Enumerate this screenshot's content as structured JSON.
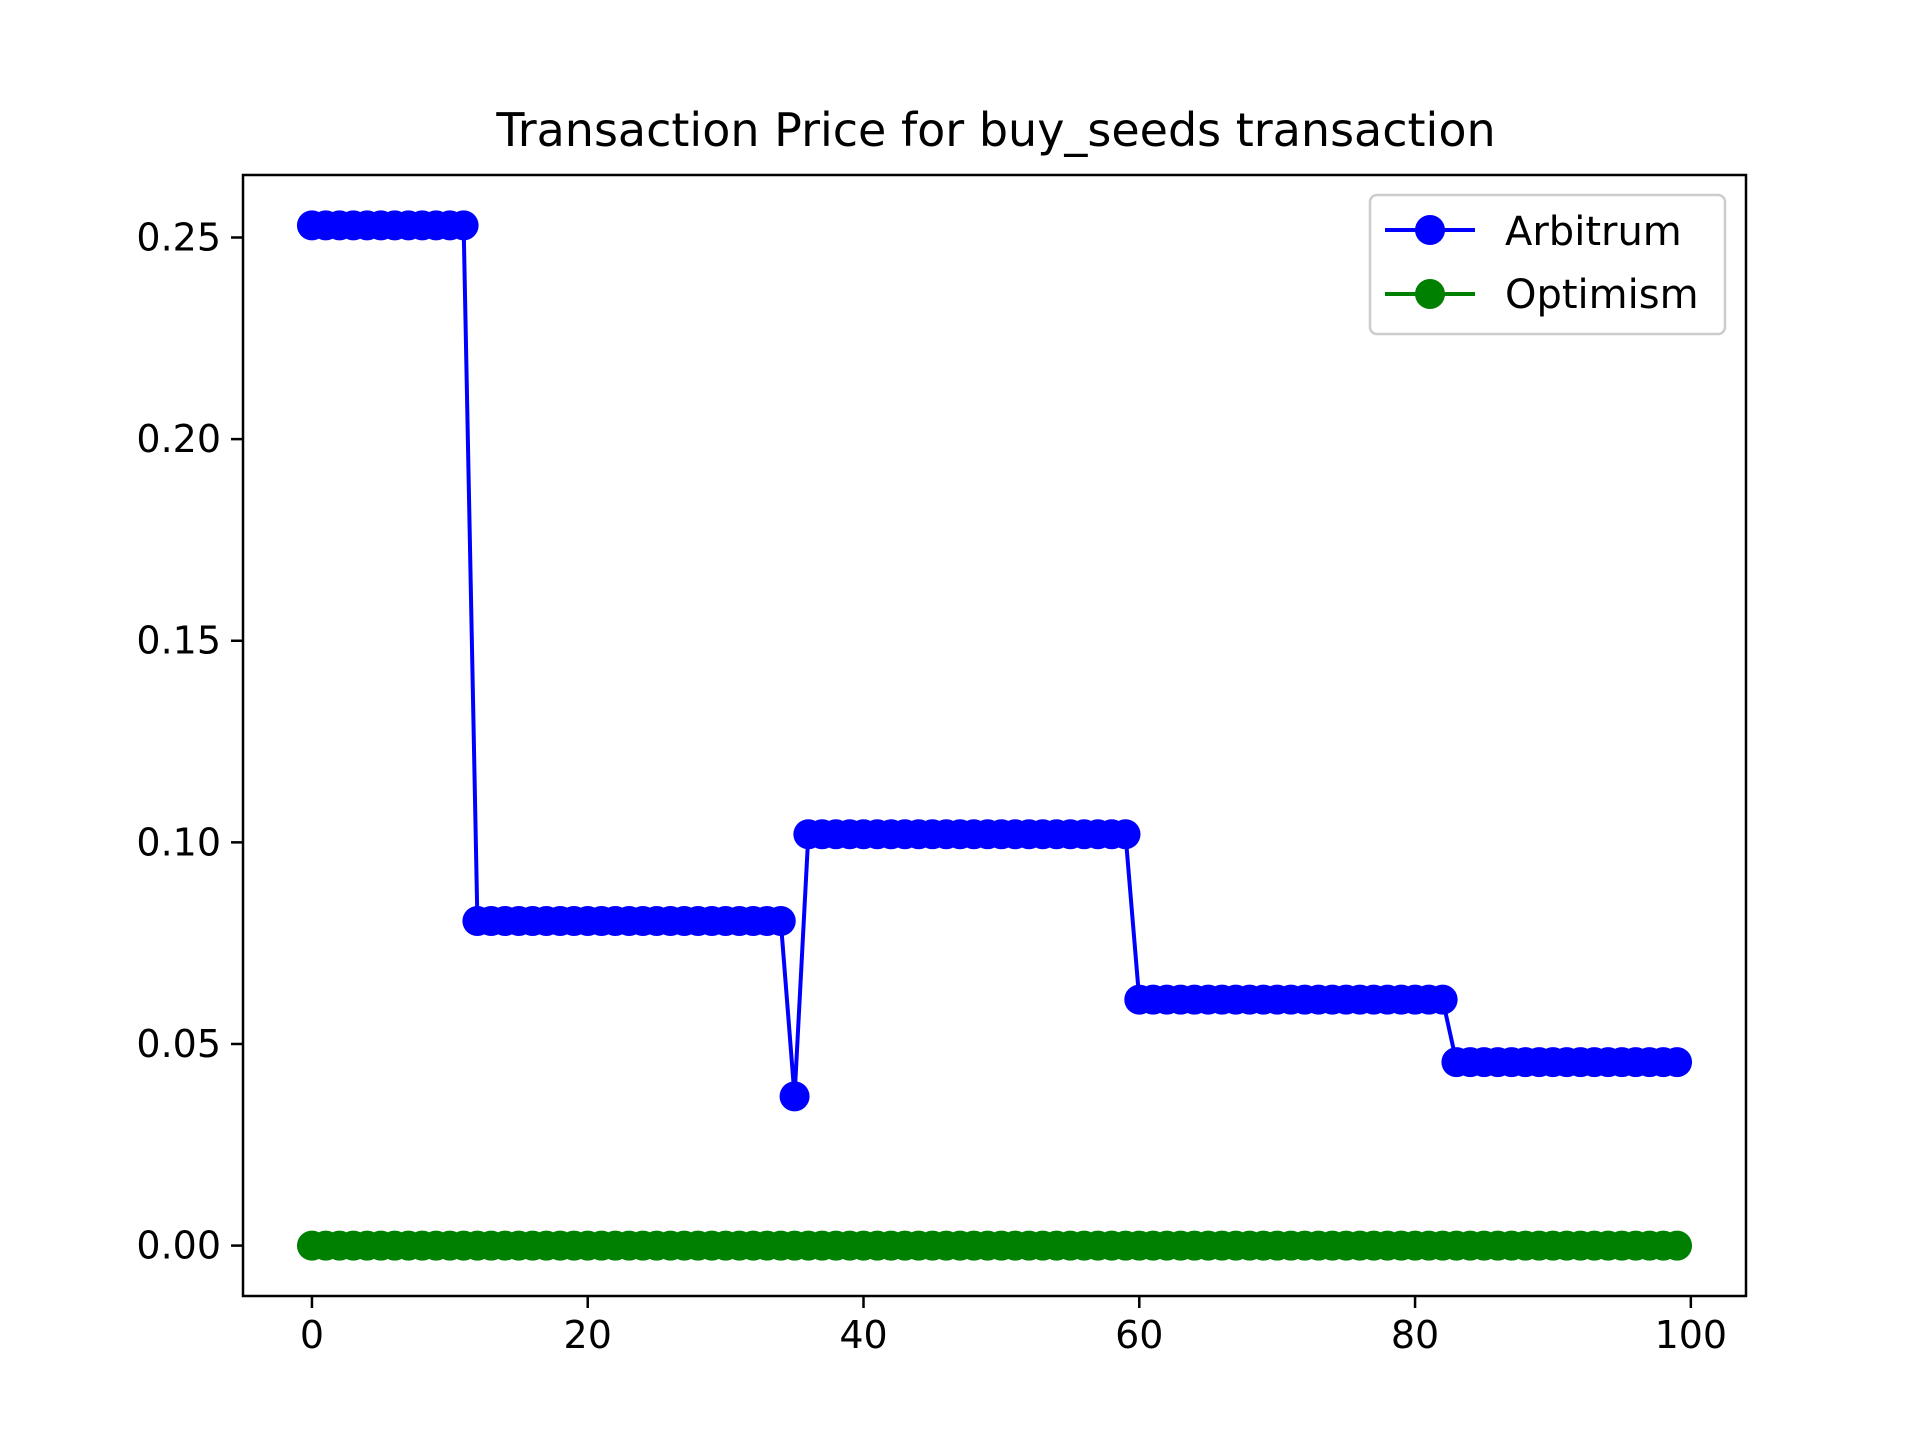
{
  "chart_data": {
    "type": "line",
    "title": "Transaction Price for buy_seeds transaction",
    "xlabel": "",
    "ylabel": "",
    "xlim": [
      -5,
      104
    ],
    "ylim": [
      -0.0125,
      0.2655
    ],
    "xticks": [
      0,
      20,
      40,
      60,
      80,
      100
    ],
    "xtick_labels": [
      "0",
      "20",
      "40",
      "60",
      "80",
      "100"
    ],
    "yticks": [
      0.0,
      0.05,
      0.1,
      0.15,
      0.2,
      0.25
    ],
    "ytick_labels": [
      "0.00",
      "0.05",
      "0.10",
      "0.15",
      "0.20",
      "0.25"
    ],
    "legend_position": "top-right",
    "grid": false,
    "series": [
      {
        "name": "Arbitrum",
        "color": "#0000ff",
        "marker": "circle",
        "segments": [
          {
            "from": 0,
            "to": 11,
            "value": 0.253
          },
          {
            "from": 12,
            "to": 34,
            "value": 0.0805
          },
          {
            "from": 35,
            "to": 35,
            "value": 0.037
          },
          {
            "from": 36,
            "to": 59,
            "value": 0.102
          },
          {
            "from": 60,
            "to": 82,
            "value": 0.061
          },
          {
            "from": 83,
            "to": 99,
            "value": 0.0455
          }
        ]
      },
      {
        "name": "Optimism",
        "color": "#008000",
        "marker": "circle",
        "segments": [
          {
            "from": 0,
            "to": 99,
            "value": 0.0
          }
        ]
      }
    ]
  }
}
